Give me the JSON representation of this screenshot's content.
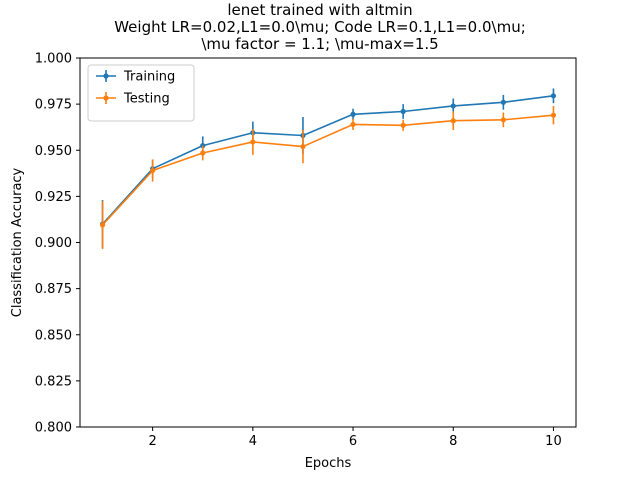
{
  "chart_data": {
    "type": "line",
    "title_lines": [
      "lenet trained with altmin",
      "Weight LR=0.02,L1=0.0\\mu; Code LR=0.1,L1=0.0\\mu;",
      "\\mu factor = 1.1; \\mu-max=1.5"
    ],
    "xlabel": "Epochs",
    "ylabel": "Classification Accuracy",
    "xlim": [
      0.55,
      10.45
    ],
    "ylim": [
      0.8,
      1.0
    ],
    "xticks": [
      2,
      4,
      6,
      8,
      10
    ],
    "yticks": [
      0.8,
      0.825,
      0.85,
      0.875,
      0.9,
      0.925,
      0.95,
      0.975,
      1.0
    ],
    "ytick_labels": [
      "0.800",
      "0.825",
      "0.850",
      "0.875",
      "0.900",
      "0.925",
      "0.950",
      "0.975",
      "1.000"
    ],
    "legend_position": "upper-left",
    "x": [
      1,
      2,
      3,
      4,
      5,
      6,
      7,
      8,
      9,
      10
    ],
    "series": [
      {
        "name": "Training",
        "color": "#1f77b4",
        "values": [
          0.91,
          0.94,
          0.9525,
          0.9595,
          0.958,
          0.9695,
          0.971,
          0.974,
          0.976,
          0.9795
        ],
        "errors": [
          0.013,
          0.005,
          0.005,
          0.006,
          0.01,
          0.003,
          0.004,
          0.004,
          0.004,
          0.004
        ]
      },
      {
        "name": "Testing",
        "color": "#ff7f0e",
        "values": [
          0.9095,
          0.939,
          0.9485,
          0.9545,
          0.952,
          0.964,
          0.9635,
          0.966,
          0.9665,
          0.969
        ],
        "errors": [
          0.013,
          0.006,
          0.004,
          0.007,
          0.009,
          0.003,
          0.003,
          0.005,
          0.004,
          0.005
        ]
      }
    ]
  }
}
